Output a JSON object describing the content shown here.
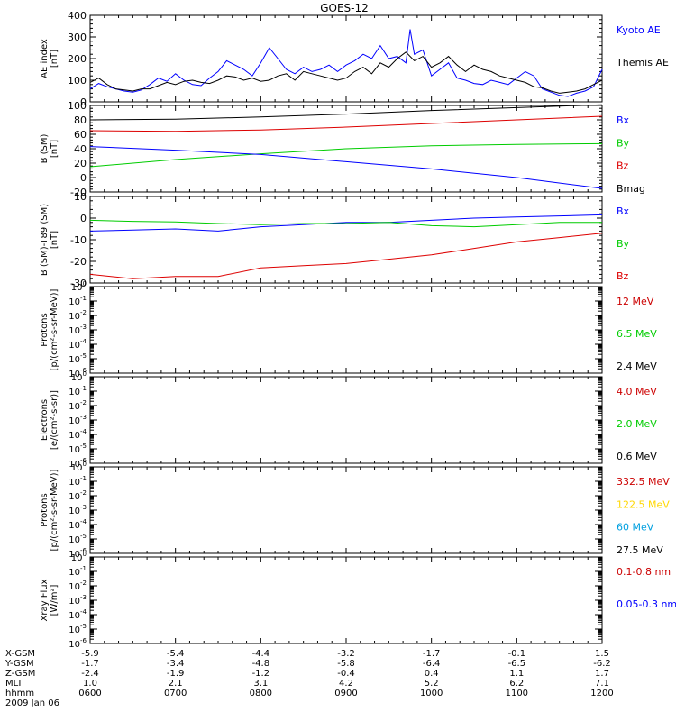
{
  "chart_data": {
    "type": "line",
    "title": "GOES-12",
    "x_axis": {
      "range": [
        "0600",
        "1200"
      ],
      "ticks": [
        "0600",
        "0700",
        "0800",
        "0900",
        "1000",
        "1100",
        "1200"
      ],
      "rows": [
        {
          "label": "X-GSM",
          "values": [
            "-5.9",
            "-5.4",
            "-4.4",
            "-3.2",
            "-1.7",
            "-0.1",
            "1.5"
          ]
        },
        {
          "label": "Y-GSM",
          "values": [
            "-1.7",
            "-3.4",
            "-4.8",
            "-5.8",
            "-6.4",
            "-6.5",
            "-6.2"
          ]
        },
        {
          "label": "Z-GSM",
          "values": [
            "-2.4",
            "-1.9",
            "-1.2",
            "-0.4",
            "0.4",
            "1.1",
            "1.7"
          ]
        },
        {
          "label": "MLT",
          "values": [
            "1.0",
            "2.1",
            "3.1",
            "4.2",
            "5.2",
            "6.2",
            "7.1"
          ]
        },
        {
          "label": "hhmm",
          "values": [
            "0600",
            "0700",
            "0800",
            "0900",
            "1000",
            "1100",
            "1200"
          ]
        }
      ],
      "date": "2009 Jan 06"
    },
    "panels": [
      {
        "id": "ae",
        "ylabel": [
          "AE index",
          "[nT]"
        ],
        "scale": "linear",
        "ylim": [
          0,
          400
        ],
        "yticks": [
          "0",
          "100",
          "200",
          "300",
          "400"
        ],
        "legend": [
          {
            "label": "Kyoto AE",
            "color": "#0000ff"
          },
          {
            "label": "Themis AE",
            "color": "#000000"
          }
        ],
        "series": [
          {
            "name": "Kyoto AE",
            "color": "#0000ff",
            "x": [
              0,
              0.1,
              0.2,
              0.3,
              0.4,
              0.5,
              0.6,
              0.7,
              0.8,
              0.9,
              1.0,
              1.1,
              1.2,
              1.3,
              1.4,
              1.5,
              1.6,
              1.7,
              1.8,
              1.9,
              2.0,
              2.1,
              2.2,
              2.3,
              2.4,
              2.5,
              2.6,
              2.7,
              2.8,
              2.9,
              3.0,
              3.1,
              3.2,
              3.3,
              3.4,
              3.5,
              3.6,
              3.7,
              3.75,
              3.8,
              3.9,
              4.0,
              4.1,
              4.2,
              4.3,
              4.4,
              4.5,
              4.6,
              4.7,
              4.8,
              4.9,
              5.0,
              5.1,
              5.2,
              5.3,
              5.4,
              5.5,
              5.6,
              5.7,
              5.8,
              5.9,
              6.0
            ],
            "y": [
              60,
              85,
              70,
              60,
              50,
              45,
              55,
              80,
              110,
              95,
              130,
              100,
              80,
              75,
              110,
              140,
              190,
              170,
              150,
              120,
              180,
              250,
              200,
              150,
              130,
              160,
              140,
              150,
              170,
              140,
              170,
              190,
              220,
              200,
              260,
              200,
              210,
              180,
              335,
              220,
              240,
              120,
              150,
              180,
              110,
              100,
              85,
              80,
              100,
              90,
              80,
              110,
              140,
              120,
              60,
              45,
              30,
              25,
              40,
              50,
              70,
              150
            ]
          },
          {
            "name": "Themis AE",
            "color": "#000000",
            "x": [
              0,
              0.1,
              0.2,
              0.3,
              0.4,
              0.5,
              0.6,
              0.7,
              0.8,
              0.9,
              1.0,
              1.1,
              1.2,
              1.3,
              1.4,
              1.5,
              1.6,
              1.7,
              1.8,
              1.9,
              2.0,
              2.1,
              2.2,
              2.3,
              2.4,
              2.5,
              2.6,
              2.7,
              2.8,
              2.9,
              3.0,
              3.1,
              3.2,
              3.3,
              3.4,
              3.5,
              3.6,
              3.7,
              3.8,
              3.9,
              4.0,
              4.1,
              4.2,
              4.3,
              4.4,
              4.5,
              4.6,
              4.7,
              4.8,
              4.9,
              5.0,
              5.1,
              5.2,
              5.3,
              5.4,
              5.5,
              5.6,
              5.7,
              5.8,
              5.9,
              6.0
            ],
            "y": [
              90,
              110,
              80,
              60,
              55,
              50,
              60,
              60,
              75,
              90,
              80,
              95,
              100,
              90,
              85,
              100,
              120,
              115,
              100,
              110,
              95,
              100,
              120,
              130,
              100,
              140,
              130,
              120,
              110,
              100,
              110,
              140,
              160,
              130,
              180,
              160,
              200,
              230,
              190,
              210,
              160,
              180,
              210,
              170,
              140,
              170,
              150,
              140,
              120,
              110,
              100,
              90,
              70,
              65,
              50,
              40,
              45,
              50,
              60,
              80,
              100
            ]
          }
        ]
      },
      {
        "id": "bsm",
        "ylabel": [
          "B (SM)",
          "[nT]"
        ],
        "scale": "linear",
        "ylim": [
          -20,
          100
        ],
        "yticks": [
          "-20",
          "0",
          "20",
          "40",
          "60",
          "80",
          "100"
        ],
        "legend": [
          {
            "label": "Bx",
            "color": "#0000ff"
          },
          {
            "label": "By",
            "color": "#00cc00"
          },
          {
            "label": "Bz",
            "color": "#dd0000"
          },
          {
            "label": "Bmag",
            "color": "#000000"
          }
        ],
        "series": [
          {
            "name": "Bmag",
            "color": "#000000",
            "x": [
              0,
              1,
              2,
              3,
              4,
              5,
              6
            ],
            "y": [
              80,
              81,
              84,
              88,
              93,
              97,
              101
            ]
          },
          {
            "name": "Bz",
            "color": "#dd0000",
            "x": [
              0,
              1,
              2,
              3,
              4,
              5,
              6
            ],
            "y": [
              65,
              64,
              66,
              70,
              75,
              80,
              85
            ]
          },
          {
            "name": "By",
            "color": "#00cc00",
            "x": [
              0,
              1,
              2,
              3,
              4,
              5,
              6
            ],
            "y": [
              15,
              25,
              33,
              40,
              44,
              46,
              47
            ]
          },
          {
            "name": "Bx",
            "color": "#0000ff",
            "x": [
              0,
              1,
              2,
              3,
              4,
              5,
              6
            ],
            "y": [
              43,
              38,
              32,
              22,
              12,
              0,
              -15
            ]
          }
        ]
      },
      {
        "id": "bsmt",
        "ylabel": [
          "B (SM)-T89 (SM)",
          "[nT]"
        ],
        "scale": "linear",
        "ylim": [
          -30,
          10
        ],
        "yticks": [
          "-30",
          "-20",
          "-10",
          "0",
          "10"
        ],
        "legend": [
          {
            "label": "Bx",
            "color": "#0000ff"
          },
          {
            "label": "By",
            "color": "#00cc00"
          },
          {
            "label": "Bz",
            "color": "#dd0000"
          }
        ],
        "series": [
          {
            "name": "Bx",
            "color": "#0000ff",
            "x": [
              0,
              0.5,
              1,
              1.5,
              2,
              2.5,
              3,
              3.5,
              4,
              4.5,
              5,
              5.5,
              6
            ],
            "y": [
              -6,
              -5.5,
              -5,
              -6,
              -4,
              -3,
              -2,
              -2,
              -1,
              0,
              0.5,
              1,
              1.5
            ]
          },
          {
            "name": "By",
            "color": "#00cc00",
            "x": [
              0,
              0.5,
              1,
              1.5,
              2,
              2.5,
              3,
              3.5,
              4,
              4.5,
              5,
              5.5,
              6
            ],
            "y": [
              -1,
              -1.5,
              -1.8,
              -2.5,
              -3,
              -2.5,
              -2.5,
              -2,
              -3.5,
              -4,
              -3,
              -2,
              -2
            ]
          },
          {
            "name": "Bz",
            "color": "#dd0000",
            "x": [
              0,
              0.5,
              1,
              1.5,
              2,
              2.5,
              3,
              3.5,
              4,
              4.5,
              5,
              5.5,
              6
            ],
            "y": [
              -26,
              -28,
              -27,
              -27,
              -23,
              -22,
              -21,
              -19,
              -17,
              -14,
              -11,
              -9,
              -7
            ]
          }
        ]
      },
      {
        "id": "protons1",
        "ylabel": [
          "Protons",
          "[p/(cm²-s-sr-MeV)]"
        ],
        "scale": "log",
        "decades": [
          -6,
          0
        ],
        "legend": [
          {
            "label": "12 MeV",
            "color": "#cc0000"
          },
          {
            "label": "6.5 MeV",
            "color": "#00cc00"
          },
          {
            "label": "2.4 MeV",
            "color": "#000000"
          }
        ],
        "series": []
      },
      {
        "id": "electrons",
        "ylabel": [
          "Electrons",
          "[e/(cm²-s-sr)]"
        ],
        "scale": "log",
        "decades": [
          -6,
          0
        ],
        "legend": [
          {
            "label": "4.0 MeV",
            "color": "#cc0000"
          },
          {
            "label": "2.0 MeV",
            "color": "#00cc00"
          },
          {
            "label": "0.6 MeV",
            "color": "#000000"
          }
        ],
        "series": []
      },
      {
        "id": "protons2",
        "ylabel": [
          "Protons",
          "[p/(cm²-s-sr-MeV)]"
        ],
        "scale": "log",
        "decades": [
          -6,
          0
        ],
        "legend": [
          {
            "label": "332.5 MeV",
            "color": "#cc0000"
          },
          {
            "label": "122.5 MeV",
            "color": "#ffd700"
          },
          {
            "label": "60 MeV",
            "color": "#00a0e0"
          },
          {
            "label": "27.5 MeV",
            "color": "#000000"
          }
        ],
        "series": []
      },
      {
        "id": "xray",
        "ylabel": [
          "Xray Flux",
          "[W/m²]"
        ],
        "scale": "log",
        "decades": [
          -6,
          0
        ],
        "legend": [
          {
            "label": "0.1-0.8 nm",
            "color": "#cc0000"
          },
          {
            "label": "0.05-0.3 nm",
            "color": "#0000ff"
          }
        ],
        "series": []
      }
    ]
  }
}
